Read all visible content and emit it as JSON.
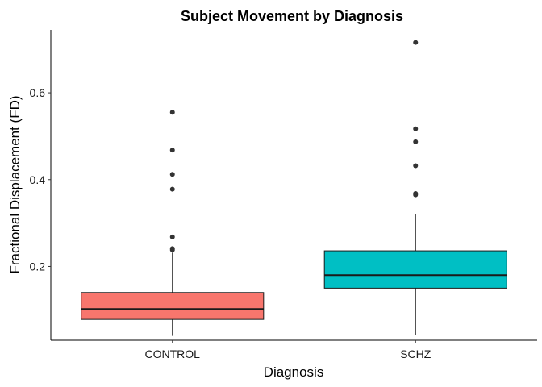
{
  "chart_data": {
    "type": "box",
    "title": "Subject Movement by Diagnosis",
    "xlabel": "Diagnosis",
    "ylabel": "Fractional Displacement (FD)",
    "categories": [
      "CONTROL",
      "SCHZ"
    ],
    "ylim": [
      0.03,
      0.745
    ],
    "y_ticks": [
      {
        "value": 0.2,
        "label": "0.2"
      },
      {
        "value": 0.4,
        "label": "0.4"
      },
      {
        "value": 0.6,
        "label": "0.6"
      }
    ],
    "grid": false,
    "legend": "none",
    "boxes": [
      {
        "category": "CONTROL",
        "color": "#F8766D",
        "whisker_low": 0.04,
        "q1": 0.078,
        "median": 0.102,
        "q3": 0.14,
        "whisker_high": 0.232,
        "outliers": [
          0.238,
          0.241,
          0.268,
          0.378,
          0.412,
          0.468,
          0.555
        ]
      },
      {
        "category": "SCHZ",
        "color": "#00BFC4",
        "whisker_low": 0.043,
        "q1": 0.15,
        "median": 0.18,
        "q3": 0.236,
        "whisker_high": 0.32,
        "outliers": [
          0.365,
          0.368,
          0.432,
          0.487,
          0.517,
          0.716
        ]
      }
    ]
  }
}
